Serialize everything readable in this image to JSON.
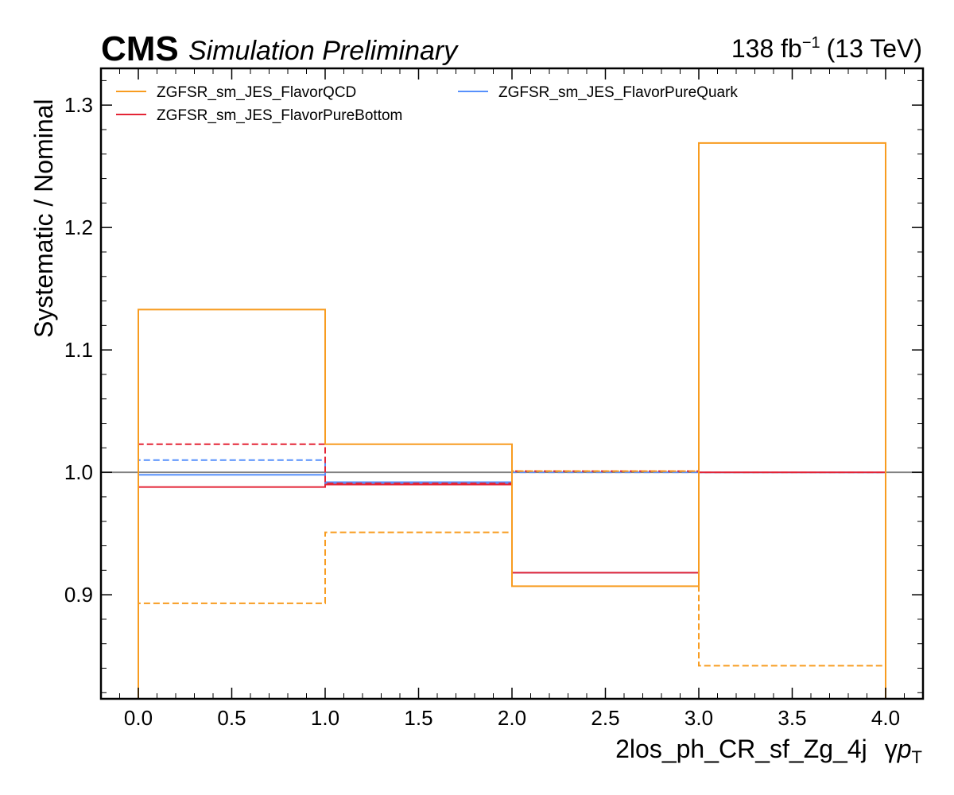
{
  "header": {
    "experiment": "CMS",
    "status": "Simulation Preliminary",
    "lumi_value": "138 fb",
    "lumi_exponent": "−1",
    "energy": "(13 TeV)"
  },
  "chart_data": {
    "type": "line",
    "title": "",
    "xlabel_prefix": "2los_ph_CR_sf_Zg_4j",
    "xlabel_gamma": "γ",
    "xlabel_p": "p",
    "xlabel_sub": "T",
    "ylabel": "Systematic / Nominal",
    "xlim": [
      -0.2,
      4.2
    ],
    "ylim": [
      0.815,
      1.33
    ],
    "xticks": [
      0.0,
      0.5,
      1.0,
      1.5,
      2.0,
      2.5,
      3.0,
      3.5,
      4.0
    ],
    "xtick_labels": [
      "0.0",
      "0.5",
      "1.0",
      "1.5",
      "2.0",
      "2.5",
      "3.0",
      "3.5",
      "4.0"
    ],
    "yticks": [
      0.9,
      1.0,
      1.1,
      1.2,
      1.3
    ],
    "ytick_labels": [
      "0.9",
      "1.0",
      "1.1",
      "1.2",
      "1.3"
    ],
    "bin_edges": [
      0,
      1,
      2,
      3,
      4
    ],
    "reference_line": 1.0,
    "legend_position": "top-left",
    "series": [
      {
        "name": "ZGFSR_sm_JES_FlavorQCD",
        "variation": "up",
        "style": "solid",
        "color": "#f89c20",
        "values": [
          1.133,
          1.023,
          0.907,
          1.269
        ]
      },
      {
        "variation": "down",
        "style": "dashed",
        "color": "#f89c20",
        "values": [
          0.893,
          0.951,
          1.001,
          0.842
        ]
      },
      {
        "name": "ZGFSR_sm_JES_FlavorPureBottom",
        "variation": "up",
        "style": "solid",
        "color": "#e42536",
        "values": [
          0.988,
          0.99,
          0.918,
          1.0
        ]
      },
      {
        "variation": "down",
        "style": "dashed",
        "color": "#e42536",
        "values": [
          1.023,
          0.991,
          1.001,
          1.0
        ]
      },
      {
        "name": "ZGFSR_sm_JES_FlavorPureQuark",
        "variation": "up",
        "style": "solid",
        "color": "#5790fc",
        "values": [
          0.998,
          0.992,
          0.918,
          1.0
        ]
      },
      {
        "variation": "down",
        "style": "dashed",
        "color": "#5790fc",
        "values": [
          1.01,
          0.991,
          1.0,
          1.0
        ]
      }
    ],
    "reference_color": "#808080"
  }
}
